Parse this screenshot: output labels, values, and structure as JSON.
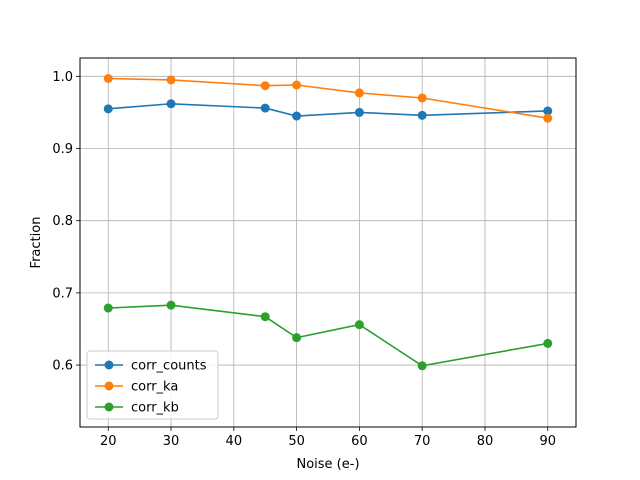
{
  "chart_data": {
    "type": "line",
    "title": "",
    "xlabel": "Noise (e-)",
    "ylabel": "Fraction",
    "x": [
      20,
      30,
      45,
      50,
      60,
      70,
      90
    ],
    "xlim": [
      15.5,
      94.5
    ],
    "ylim": [
      0.5142,
      1.0254
    ],
    "xticks": [
      20,
      30,
      40,
      50,
      60,
      70,
      80,
      90
    ],
    "yticks": [
      0.6,
      0.7,
      0.8,
      0.9,
      1.0
    ],
    "xtick_labels": [
      "20",
      "30",
      "40",
      "50",
      "60",
      "70",
      "80",
      "90"
    ],
    "ytick_labels": [
      "0.6",
      "0.7",
      "0.8",
      "0.9",
      "1.0"
    ],
    "grid": true,
    "legend_position": "lower-left",
    "series": [
      {
        "name": "corr_counts",
        "color": "#1f77b4",
        "values": [
          0.955,
          0.962,
          0.956,
          0.945,
          0.95,
          0.946,
          0.952
        ]
      },
      {
        "name": "corr_ka",
        "color": "#ff7f0e",
        "values": [
          0.997,
          0.995,
          0.987,
          0.988,
          0.977,
          0.97,
          0.942
        ]
      },
      {
        "name": "corr_kb",
        "color": "#2ca02c",
        "values": [
          0.679,
          0.683,
          0.667,
          0.638,
          0.656,
          0.599,
          0.63
        ]
      }
    ]
  }
}
